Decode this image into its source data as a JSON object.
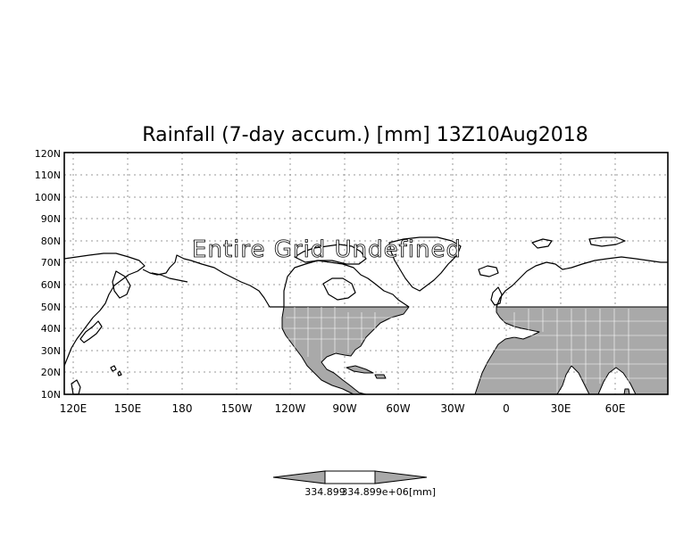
{
  "title": "Rainfall (7-day accum.) [mm] 13Z10Aug2018",
  "overlay_text": "Entire Grid Undefined",
  "lat_labels": [
    "120N",
    "110N",
    "100N",
    "90N",
    "80N",
    "70N",
    "60N",
    "50N",
    "40N",
    "30N",
    "20N",
    "10N"
  ],
  "lon_labels": [
    "120E",
    "150E",
    "180",
    "150W",
    "120W",
    "90W",
    "60W",
    "30W",
    "0",
    "30E",
    "60E"
  ],
  "colorbar": {
    "label_left": "334.899",
    "label_right": "334.899e+06",
    "unit": "[mm]"
  },
  "colors": {
    "background": "#ffffff",
    "shaded_land": "#a9a9a9",
    "grid": "#9a9a9a",
    "coastline": "#000000"
  }
}
